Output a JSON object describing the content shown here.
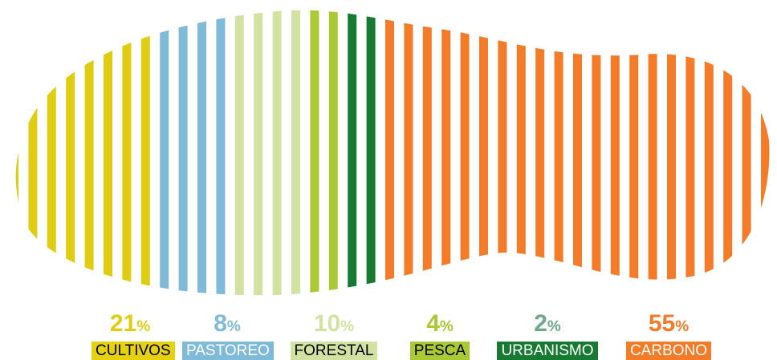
{
  "chart_data": {
    "type": "bar",
    "categories": [
      "CULTIVOS",
      "PASTOREO",
      "FORESTAL",
      "PESCA",
      "URBANISMO",
      "CARBONO"
    ],
    "values": [
      21,
      8,
      10,
      4,
      2,
      55
    ],
    "unit": "%",
    "colors": {
      "CULTIVOS": {
        "fill": "#e0cc10",
        "label_bg": "#e5d10d",
        "label_text": "#000000"
      },
      "PASTOREO": {
        "fill": "#7fbad8",
        "label_bg": "#7fbad8",
        "label_text": "#ffffff"
      },
      "FORESTAL": {
        "fill": "#d2e3a1",
        "label_bg": "#d2e3a1",
        "label_text": "#000000"
      },
      "PESCA": {
        "fill": "#a9c935",
        "label_bg": "#a9c935",
        "label_text": "#000000"
      },
      "URBANISMO": {
        "fill": "#177a33",
        "label_bg": "#177a33",
        "label_text": "#ffffff"
      },
      "CARBONO": {
        "fill": "#f47b28",
        "label_bg": "#f47b28",
        "label_text": "#ffffff"
      }
    },
    "stripe_counts": [
      8,
      4,
      4,
      2,
      2,
      26
    ],
    "percent_colors": [
      "#e0cc10",
      "#7fbad8",
      "#d2e3a1",
      "#a9c935",
      "#6fa88a",
      "#f47b28"
    ]
  }
}
